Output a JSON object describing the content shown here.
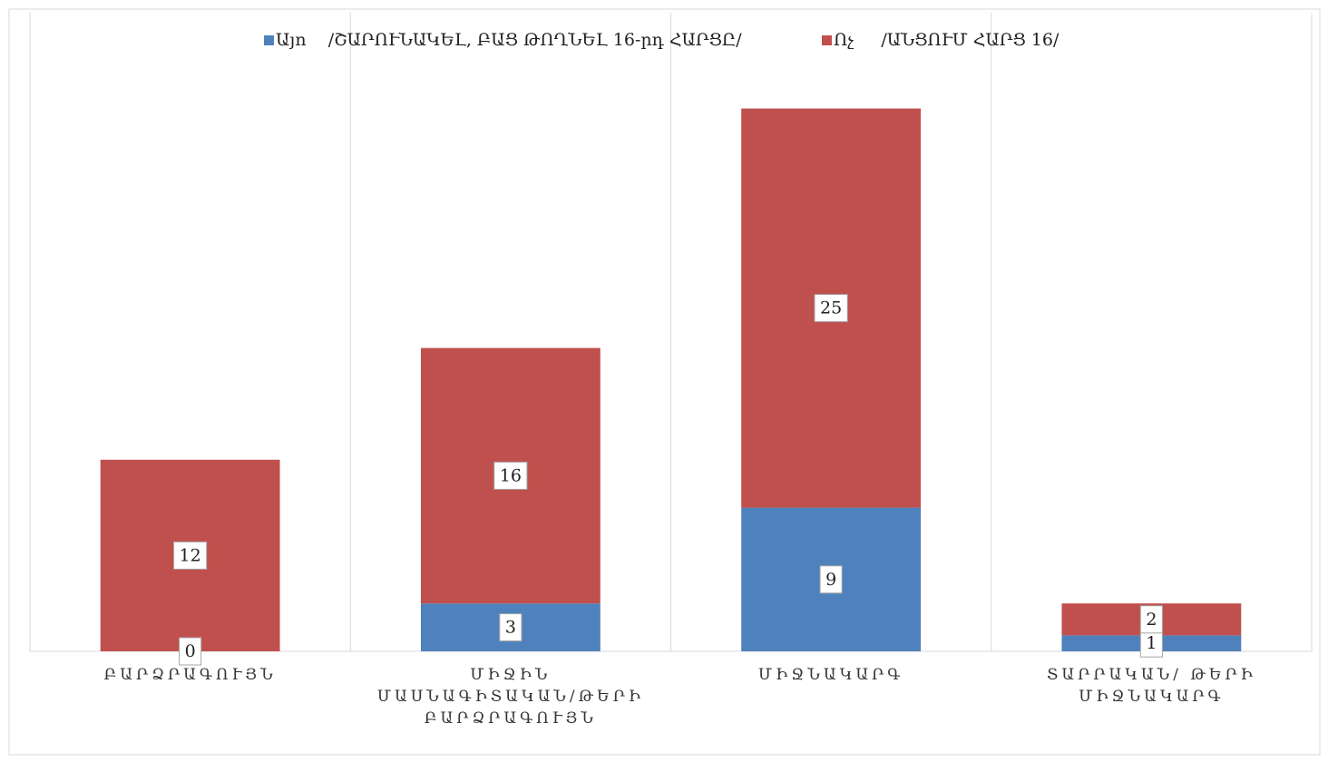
{
  "chart_data": {
    "type": "stacked_bar",
    "categories": [
      "ԲԱՐՁՐԱԳՈՒՅՆ",
      "ՄԻՋԻՆ ՄԱՍՆԱԳԻՏԱԿԱՆ/ԹԵՐԻ ԲԱՐՁՐԱԳՈՒՅՆ",
      "ՄԻՋՆԱԿԱՐԳ",
      "ՏԱՐՐԱԿԱՆ/ ԹԵՐԻ ՄԻՋՆԱԿԱՐԳ"
    ],
    "series": [
      {
        "name": "Այո    /ՇԱՐՈՒՆԱԿԵԼ, ԲԱՑ ԹՈՂՆԵԼ 16-րդ ՀԱՐՑԸ/",
        "color": "#4f81bd",
        "values": [
          0,
          3,
          9,
          1
        ]
      },
      {
        "name": "Ոչ     /ԱՆՑՈՒՄ ՀԱՐՑ 16/",
        "color": "#c0504d",
        "values": [
          12,
          16,
          25,
          2
        ]
      }
    ],
    "ylim": [
      0,
      40
    ],
    "grid": true,
    "legend": "top"
  }
}
